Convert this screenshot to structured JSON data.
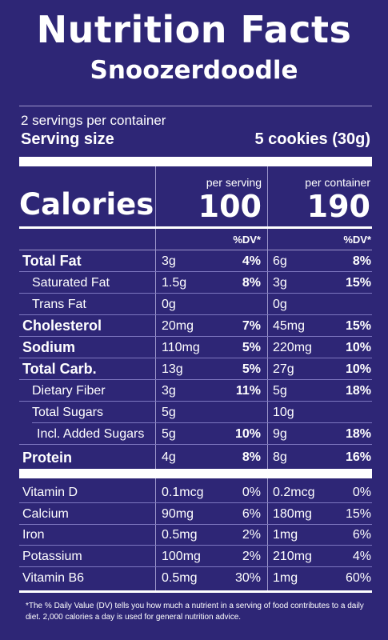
{
  "title": "Nutrition Facts",
  "product_name": "Snoozerdoodle",
  "servings_per_container": "2 servings per container",
  "serving_size_label": "Serving size",
  "serving_size_value": "5 cookies (30g)",
  "calories_label": "Calories",
  "per_serving_label": "per serving",
  "per_container_label": "per container",
  "calories_per_serving": "100",
  "calories_per_container": "190",
  "dv_label": "%DV*",
  "nutrients": [
    {
      "name": "Total Fat",
      "amt1": "3g",
      "dv1": "4%",
      "amt2": "6g",
      "dv2": "8%"
    },
    {
      "name": "Saturated Fat",
      "amt1": "1.5g",
      "dv1": "8%",
      "amt2": "3g",
      "dv2": "15%"
    },
    {
      "name": "Trans Fat",
      "amt1": "0g",
      "dv1": "",
      "amt2": "0g",
      "dv2": ""
    },
    {
      "name": "Cholesterol",
      "amt1": "20mg",
      "dv1": "7%",
      "amt2": "45mg",
      "dv2": "15%"
    },
    {
      "name": "Sodium",
      "amt1": "110mg",
      "dv1": "5%",
      "amt2": "220mg",
      "dv2": "10%"
    },
    {
      "name": "Total Carb.",
      "amt1": "13g",
      "dv1": "5%",
      "amt2": "27g",
      "dv2": "10%"
    },
    {
      "name": "Dietary Fiber",
      "amt1": "3g",
      "dv1": "11%",
      "amt2": "5g",
      "dv2": "18%"
    },
    {
      "name": "Total Sugars",
      "amt1": "5g",
      "dv1": "",
      "amt2": "10g",
      "dv2": ""
    },
    {
      "name": "Incl. Added Sugars",
      "amt1": "5g",
      "dv1": "10%",
      "amt2": "9g",
      "dv2": "18%"
    },
    {
      "name": "Protein",
      "amt1": "4g",
      "dv1": "8%",
      "amt2": "8g",
      "dv2": "16%"
    }
  ],
  "vitamins": [
    {
      "name": "Vitamin D",
      "amt1": "0.1mcg",
      "dv1": "0%",
      "amt2": "0.2mcg",
      "dv2": "0%"
    },
    {
      "name": "Calcium",
      "amt1": "90mg",
      "dv1": "6%",
      "amt2": "180mg",
      "dv2": "15%"
    },
    {
      "name": "Iron",
      "amt1": "0.5mg",
      "dv1": "2%",
      "amt2": "1mg",
      "dv2": "6%"
    },
    {
      "name": "Potassium",
      "amt1": "100mg",
      "dv1": "2%",
      "amt2": "210mg",
      "dv2": "4%"
    },
    {
      "name": "Vitamin B6",
      "amt1": "0.5mg",
      "dv1": "30%",
      "amt2": "1mg",
      "dv2": "60%"
    }
  ],
  "footnote": "*The % Daily Value (DV) tells you how much a nutrient in a serving of food contributes to a daily diet. 2,000 calories a day is used for general nutrition advice.",
  "colors": {
    "background": "#2e2676",
    "text": "#ffffff",
    "rule": "#9d97cc"
  }
}
